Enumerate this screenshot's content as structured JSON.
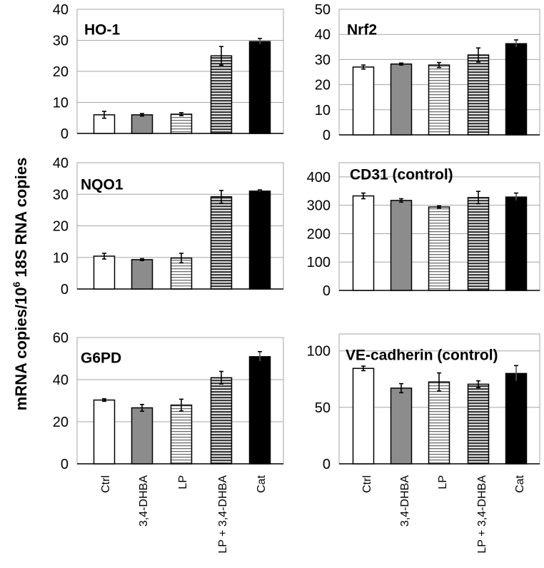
{
  "ylabel_prefix": "mRNA copies/10",
  "ylabel_sup": "6",
  "ylabel_suffix": " 18S RNA copies",
  "categories": [
    "Ctrl",
    "3,4-DHBA",
    "LP",
    "LP + 3,4-DHBA",
    "Cat"
  ],
  "colors": {
    "gray": "#8c8c8c",
    "black": "#000000",
    "white": "#ffffff",
    "grid": "#a6a6a6",
    "hatch": "#555555"
  },
  "chart_data": [
    {
      "type": "bar",
      "title": "HO-1",
      "ylim": [
        0,
        40
      ],
      "ticks": [
        "0",
        "10",
        "20",
        "30",
        "40"
      ],
      "categories": [
        "Ctrl",
        "3,4-DHBA",
        "LP",
        "LP + 3,4-DHBA",
        "Cat"
      ],
      "values": [
        6.0,
        6.0,
        6.2,
        25.0,
        29.6
      ],
      "errors": [
        1.1,
        0.4,
        0.5,
        3.0,
        1.0
      ]
    },
    {
      "type": "bar",
      "title": "Nrf2",
      "ylim": [
        0,
        50
      ],
      "ticks": [
        "0",
        "10",
        "20",
        "30",
        "40",
        "50"
      ],
      "categories": [
        "Ctrl",
        "3,4-DHBA",
        "LP",
        "LP + 3,4-DHBA",
        "Cat"
      ],
      "values": [
        27.0,
        28.2,
        27.8,
        31.8,
        36.3
      ],
      "errors": [
        0.8,
        0.4,
        1.0,
        2.8,
        1.5
      ]
    },
    {
      "type": "bar",
      "title": "NQO1",
      "ylim": [
        0,
        40
      ],
      "ticks": [
        "0",
        "10",
        "20",
        "30",
        "40"
      ],
      "categories": [
        "Ctrl",
        "3,4-DHBA",
        "LP",
        "LP + 3,4-DHBA",
        "Cat"
      ],
      "values": [
        10.4,
        9.3,
        9.8,
        29.2,
        31.0
      ],
      "errors": [
        0.9,
        0.3,
        1.5,
        2.0,
        0.4
      ]
    },
    {
      "type": "bar",
      "title": "CD31 (control)",
      "ylim": [
        0,
        450
      ],
      "ticks": [
        "0",
        "100",
        "200",
        "300",
        "400"
      ],
      "categories": [
        "Ctrl",
        "3,4-DHBA",
        "LP",
        "LP + 3,4-DHBA",
        "Cat"
      ],
      "values": [
        333,
        317,
        294,
        327,
        329
      ],
      "errors": [
        10,
        6,
        4,
        22,
        14
      ]
    },
    {
      "type": "bar",
      "title": "G6PD",
      "ylim": [
        0,
        60
      ],
      "ticks": [
        "0",
        "20",
        "40",
        "60"
      ],
      "categories": [
        "Ctrl",
        "3,4-DHBA",
        "LP",
        "LP + 3,4-DHBA",
        "Cat"
      ],
      "values": [
        30.3,
        26.6,
        27.9,
        40.9,
        50.9
      ],
      "errors": [
        0.6,
        1.6,
        2.8,
        3.0,
        2.4
      ]
    },
    {
      "type": "bar",
      "title": "VE-cadherin (control)",
      "ylim": [
        0,
        115
      ],
      "ticks": [
        "0",
        "50",
        "100"
      ],
      "categories": [
        "Ctrl",
        "3,4-DHBA",
        "LP",
        "LP + 3,4-DHBA",
        "Cat"
      ],
      "values": [
        84.5,
        67.0,
        72.5,
        70.5,
        80.0
      ],
      "errors": [
        2.0,
        4.0,
        8.0,
        3.0,
        7.0
      ]
    }
  ]
}
